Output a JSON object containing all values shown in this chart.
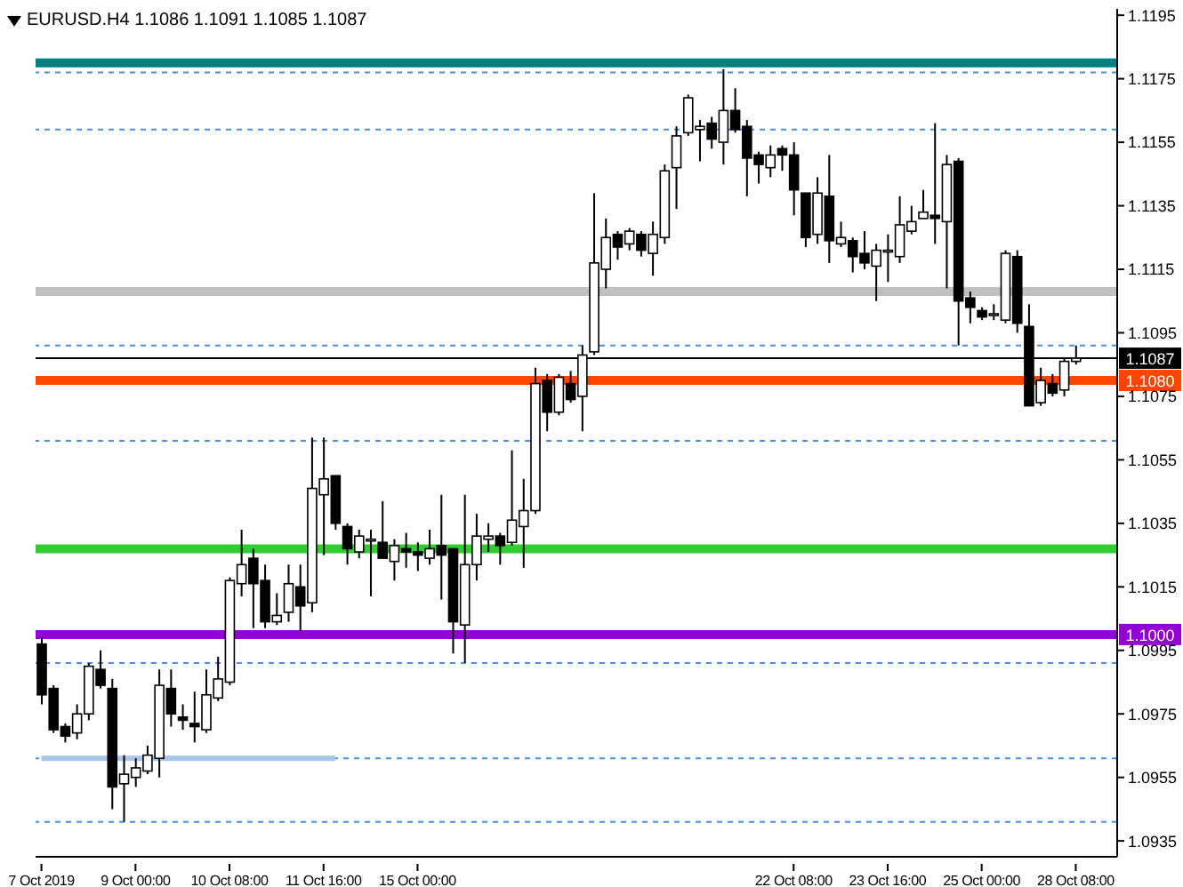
{
  "chart_data": {
    "type": "candlestick",
    "title": "EURUSD.H4 1.1086 1.1091 1.1085 1.1087",
    "categories": [
      "7 Oct 2019",
      null,
      null,
      null,
      null,
      null,
      null,
      null,
      "9 Oct 00:00",
      null,
      null,
      null,
      null,
      null,
      null,
      null,
      "10 Oct 08:00",
      null,
      null,
      null,
      null,
      null,
      null,
      null,
      "11 Oct 16:00",
      null,
      null,
      null,
      null,
      null,
      null,
      null,
      "15 Oct 00:00",
      null,
      null,
      null,
      null,
      null,
      null,
      null,
      null,
      null,
      null,
      null,
      null,
      null,
      null,
      null,
      null,
      null,
      null,
      null,
      null,
      null,
      null,
      null,
      null,
      null,
      null,
      null,
      null,
      null,
      null,
      null,
      "22 Oct 08:00",
      null,
      null,
      null,
      null,
      null,
      null,
      null,
      "23 Oct 16:00",
      null,
      null,
      null,
      null,
      null,
      null,
      null,
      "25 Oct 00:00",
      null,
      null,
      null,
      null,
      null,
      null,
      null,
      "28 Oct 08:00"
    ],
    "ohlc": [
      [
        1.0997,
        1.0999,
        1.0978,
        1.0981
      ],
      [
        1.0983,
        1.0984,
        1.0969,
        1.097
      ],
      [
        1.0971,
        1.0972,
        1.0966,
        1.0968
      ],
      [
        1.0969,
        1.0978,
        1.0967,
        1.0975
      ],
      [
        1.0975,
        1.0991,
        1.0973,
        1.099
      ],
      [
        1.0989,
        1.0995,
        1.0983,
        1.0984
      ],
      [
        1.0983,
        1.0986,
        1.0945,
        1.0952
      ],
      [
        1.0953,
        1.0962,
        1.0941,
        1.0956
      ],
      [
        1.0955,
        1.0961,
        1.0952,
        1.0958
      ],
      [
        1.0957,
        1.0965,
        1.0956,
        1.0962
      ],
      [
        1.0961,
        1.0989,
        1.0955,
        1.0984
      ],
      [
        1.0983,
        1.0989,
        1.0971,
        1.0975
      ],
      [
        1.0974,
        1.0978,
        1.097,
        1.0973
      ],
      [
        1.0972,
        1.0982,
        1.0966,
        1.0971
      ],
      [
        1.097,
        1.0989,
        1.0969,
        1.0981
      ],
      [
        1.098,
        1.0993,
        1.0979,
        1.0986
      ],
      [
        1.0985,
        1.1018,
        1.0984,
        1.1017
      ],
      [
        1.1016,
        1.1033,
        1.1012,
        1.1022
      ],
      [
        1.1024,
        1.1027,
        1.1002,
        1.1016
      ],
      [
        1.1017,
        1.1022,
        1.1002,
        1.1004
      ],
      [
        1.1004,
        1.1013,
        1.1003,
        1.1006
      ],
      [
        1.1007,
        1.1022,
        1.1004,
        1.1016
      ],
      [
        1.1015,
        1.1022,
        1.1001,
        1.1009
      ],
      [
        1.101,
        1.1062,
        1.1007,
        1.1046
      ],
      [
        1.1044,
        1.1062,
        1.1025,
        1.1049
      ],
      [
        1.105,
        1.105,
        1.1033,
        1.1035
      ],
      [
        1.1034,
        1.1035,
        1.1022,
        1.1027
      ],
      [
        1.1026,
        1.1033,
        1.1024,
        1.1031
      ],
      [
        1.103,
        1.1033,
        1.1012,
        1.103
      ],
      [
        1.1029,
        1.1042,
        1.1024,
        1.1024
      ],
      [
        1.1023,
        1.103,
        1.1017,
        1.1028
      ],
      [
        1.1027,
        1.1032,
        1.1021,
        1.1026
      ],
      [
        1.1026,
        1.1029,
        1.102,
        1.1025
      ],
      [
        1.1024,
        1.1033,
        1.1022,
        1.1027
      ],
      [
        1.1028,
        1.1044,
        1.1011,
        1.1025
      ],
      [
        1.1027,
        1.1027,
        1.0994,
        1.1004
      ],
      [
        1.1003,
        1.1044,
        1.0991,
        1.1022
      ],
      [
        1.1022,
        1.1038,
        1.1017,
        1.1031
      ],
      [
        1.103,
        1.1035,
        1.1026,
        1.1031
      ],
      [
        1.1031,
        1.1032,
        1.1022,
        1.1028
      ],
      [
        1.1029,
        1.1058,
        1.1028,
        1.1036
      ],
      [
        1.1034,
        1.1049,
        1.1021,
        1.1039
      ],
      [
        1.1039,
        1.1084,
        1.1038,
        1.1079
      ],
      [
        1.108,
        1.1082,
        1.1064,
        1.107
      ],
      [
        1.107,
        1.1082,
        1.1069,
        1.1081
      ],
      [
        1.1079,
        1.1083,
        1.1073,
        1.1074
      ],
      [
        1.1075,
        1.1091,
        1.1064,
        1.1088
      ],
      [
        1.1089,
        1.1139,
        1.1088,
        1.1117
      ],
      [
        1.1115,
        1.1131,
        1.1109,
        1.1125
      ],
      [
        1.1126,
        1.1127,
        1.1118,
        1.1122
      ],
      [
        1.1123,
        1.1128,
        1.1121,
        1.1127
      ],
      [
        1.1126,
        1.1127,
        1.1119,
        1.1121
      ],
      [
        1.112,
        1.113,
        1.1113,
        1.1126
      ],
      [
        1.1125,
        1.1148,
        1.1123,
        1.1146
      ],
      [
        1.1147,
        1.116,
        1.1134,
        1.1157
      ],
      [
        1.1158,
        1.117,
        1.1157,
        1.1169
      ],
      [
        1.1159,
        1.1162,
        1.1149,
        1.116
      ],
      [
        1.1161,
        1.1163,
        1.1153,
        1.1156
      ],
      [
        1.1155,
        1.1178,
        1.1148,
        1.1165
      ],
      [
        1.1165,
        1.1172,
        1.1158,
        1.1159
      ],
      [
        1.116,
        1.1162,
        1.1138,
        1.115
      ],
      [
        1.1151,
        1.1152,
        1.1142,
        1.1148
      ],
      [
        1.1147,
        1.1154,
        1.1144,
        1.1151
      ],
      [
        1.1153,
        1.1154,
        1.1146,
        1.1151
      ],
      [
        1.1151,
        1.1155,
        1.1132,
        1.114
      ],
      [
        1.1139,
        1.1139,
        1.1122,
        1.1125
      ],
      [
        1.1126,
        1.1144,
        1.1123,
        1.1139
      ],
      [
        1.1138,
        1.1151,
        1.1117,
        1.1124
      ],
      [
        1.1123,
        1.113,
        1.1122,
        1.1125
      ],
      [
        1.1124,
        1.1125,
        1.1114,
        1.1119
      ],
      [
        1.112,
        1.1127,
        1.1115,
        1.1117
      ],
      [
        1.1116,
        1.1123,
        1.1105,
        1.1121
      ],
      [
        1.1121,
        1.1126,
        1.1111,
        1.1121
      ],
      [
        1.1119,
        1.1138,
        1.1117,
        1.1129
      ],
      [
        1.1127,
        1.1135,
        1.1126,
        1.113
      ],
      [
        1.1131,
        1.114,
        1.1131,
        1.1133
      ],
      [
        1.1132,
        1.1161,
        1.1123,
        1.1131
      ],
      [
        1.113,
        1.1151,
        1.1109,
        1.1148
      ],
      [
        1.1149,
        1.115,
        1.1091,
        1.1105
      ],
      [
        1.1106,
        1.1108,
        1.1098,
        1.1103
      ],
      [
        1.1102,
        1.1103,
        1.1099,
        1.11
      ],
      [
        1.1101,
        1.1104,
        1.1099,
        1.1101
      ],
      [
        1.1099,
        1.1121,
        1.1098,
        1.112
      ],
      [
        1.1119,
        1.1121,
        1.1095,
        1.1098
      ],
      [
        1.1097,
        1.1104,
        1.1072,
        1.1072
      ],
      [
        1.1073,
        1.1084,
        1.1072,
        1.108
      ],
      [
        1.1079,
        1.1082,
        1.1075,
        1.1076
      ],
      [
        1.1077,
        1.1087,
        1.1075,
        1.1086
      ],
      [
        1.1086,
        1.1091,
        1.1085,
        1.1087
      ]
    ],
    "series": [
      {
        "type": "line",
        "color": "#a9c5e8",
        "values": [
          1.0961,
          1.0961,
          1.0961,
          1.0961,
          1.0961,
          1.0961,
          1.0961,
          1.0961,
          1.0961,
          1.0961,
          1.0961,
          1.0961,
          1.0961,
          1.0961,
          1.0961,
          1.0961,
          1.0961,
          1.0961,
          1.0961,
          1.0961,
          1.0961,
          1.0961,
          1.0961,
          1.0961,
          1.0961,
          1.0961,
          null,
          null,
          null,
          null,
          null,
          null,
          null,
          null,
          null,
          null,
          null,
          null,
          null,
          null,
          null,
          null,
          null,
          null,
          null,
          null,
          null,
          null,
          null,
          null,
          null,
          null,
          null,
          null,
          null,
          null,
          null,
          null,
          null,
          null,
          null,
          null,
          null,
          null,
          null,
          null,
          null,
          null,
          null,
          null,
          null,
          null,
          null,
          null,
          null,
          null,
          null,
          null,
          null,
          null,
          null,
          null,
          null,
          null,
          null,
          null,
          null,
          null,
          null
        ]
      }
    ],
    "ylim": [
      1.093,
      1.1197
    ],
    "yticks": [
      1.1195,
      1.1175,
      1.1155,
      1.1135,
      1.1115,
      1.1095,
      1.1075,
      1.1055,
      1.1035,
      1.1015,
      1.0995,
      1.0975,
      1.0955,
      1.0935
    ],
    "ref_lines": [
      {
        "axis": "y",
        "value": 1.118,
        "color": "#008080",
        "line_style": "solid"
      },
      {
        "axis": "y",
        "value": 1.1177,
        "color": "#4a90e2",
        "line_style": "dashed"
      },
      {
        "axis": "y",
        "value": 1.1159,
        "color": "#4a90e2",
        "line_style": "dashed"
      },
      {
        "axis": "y",
        "value": 1.1108,
        "color": "#c0c0c0",
        "line_style": "solid"
      },
      {
        "axis": "y",
        "value": 1.1091,
        "color": "#4a90e2",
        "line_style": "dashed"
      },
      {
        "axis": "y",
        "value": 1.1087,
        "color": "#000000",
        "label": "1.1087"
      },
      {
        "axis": "y",
        "value": 1.108,
        "color": "#ff4500",
        "line_style": "solid",
        "label": "1.1080"
      },
      {
        "axis": "y",
        "value": 1.1061,
        "color": "#4a90e2",
        "line_style": "dashed"
      },
      {
        "axis": "y",
        "value": 1.1027,
        "color": "#32cd32",
        "line_style": "solid"
      },
      {
        "axis": "y",
        "value": 1.1,
        "color": "#9400d3",
        "line_style": "solid",
        "label": "1.1000"
      },
      {
        "axis": "y",
        "value": 1.0991,
        "color": "#4a90e2",
        "line_style": "dashed"
      },
      {
        "axis": "y",
        "value": 1.0961,
        "color": "#4a90e2",
        "line_style": "dashed"
      },
      {
        "axis": "y",
        "value": 1.0941,
        "color": "#4a90e2",
        "line_style": "dashed"
      }
    ]
  }
}
